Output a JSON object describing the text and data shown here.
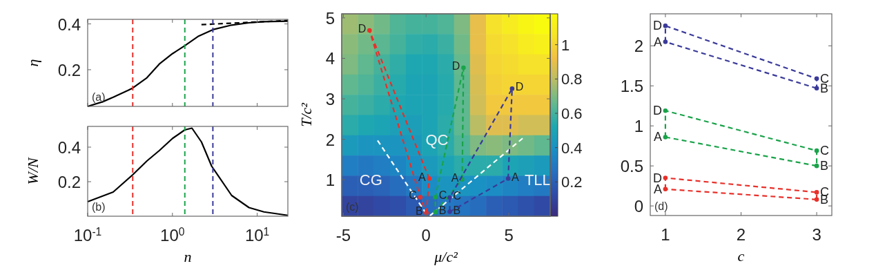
{
  "chart_data": [
    {
      "type": "line",
      "ylabel": "η",
      "annotations": [
        "(a)"
      ],
      "log": "x",
      "xlim": [
        0.1,
        23
      ],
      "xticks": [
        {
          "value": 0.1,
          "label": null
        },
        {
          "value": 1,
          "label": null
        },
        {
          "value": 10,
          "label": null
        }
      ],
      "ylim": [
        0.04,
        0.42
      ],
      "yticks": [
        0.2,
        0.4
      ],
      "tick_labels": "y",
      "line_style": "solid",
      "series": [
        {
          "color": "#000000",
          "x": [
            0.1,
            0.15,
            0.2,
            0.3,
            0.34,
            0.5,
            0.7,
            1.0,
            1.4,
            2,
            3,
            5,
            8,
            12,
            23
          ],
          "values": [
            0.04,
            0.06,
            0.08,
            0.11,
            0.12,
            0.165,
            0.225,
            0.27,
            0.305,
            0.345,
            0.375,
            0.395,
            0.405,
            0.41,
            0.412
          ]
        },
        {
          "color": "#000000",
          "line_style": "dashed",
          "x": [
            2.2,
            23
          ],
          "values": [
            0.397,
            0.415
          ]
        }
      ],
      "ref_lines": [
        {
          "axis": "x",
          "value": 0.34,
          "label": null,
          "color": "#e8302a",
          "line_style": "dashed"
        },
        {
          "axis": "x",
          "value": 1.4,
          "label": null,
          "color": "#1aa34a",
          "line_style": "dashed"
        },
        {
          "axis": "x",
          "value": 3,
          "label": null,
          "color": "#3a3a9a",
          "line_style": "dashed"
        }
      ]
    },
    {
      "type": "line",
      "ylabel": "W/N",
      "xlabel": "n",
      "annotations": [
        "(b)"
      ],
      "log": "x",
      "xlim": [
        0.1,
        23
      ],
      "xticks": [
        {
          "value": 0.1,
          "label": "10$^{-1}$"
        },
        {
          "value": 1,
          "label": "10$^{0}$"
        },
        {
          "value": 10,
          "label": "10$^{1}$"
        }
      ],
      "ylim": [
        0,
        0.52
      ],
      "yticks": [
        0.2,
        0.4
      ],
      "line_style": "solid",
      "series": [
        {
          "color": "#000000",
          "x": [
            0.1,
            0.2,
            0.34,
            0.5,
            0.7,
            1.0,
            1.4,
            1.7,
            2.2,
            2.9,
            5,
            8,
            12,
            23
          ],
          "values": [
            0.084,
            0.14,
            0.24,
            0.32,
            0.38,
            0.45,
            0.5,
            0.51,
            0.43,
            0.29,
            0.12,
            0.05,
            0.025,
            0.005
          ]
        }
      ],
      "ref_lines": [
        {
          "axis": "x",
          "value": 0.34,
          "label": null,
          "color": "#e8302a",
          "line_style": "dashed"
        },
        {
          "axis": "x",
          "value": 1.4,
          "label": null,
          "color": "#1aa34a",
          "line_style": "dashed"
        },
        {
          "axis": "x",
          "value": 3,
          "label": null,
          "color": "#3a3a9a",
          "line_style": "dashed"
        }
      ]
    },
    {
      "type": "heatmap",
      "tick_labels": false,
      "clim": [
        0,
        1.18
      ],
      "cticks": [
        0.2,
        0.4,
        0.6,
        0.8,
        1
      ],
      "categories": [
        null,
        null,
        null,
        null,
        null,
        null,
        null,
        null,
        null,
        null,
        null,
        null,
        null
      ],
      "y_categories": [
        null,
        null,
        null,
        null,
        null,
        null,
        null,
        null,
        null,
        null
      ],
      "cells": [
        [
          0.75,
          0.72,
          0.68,
          0.62,
          0.6,
          0.6,
          0.62,
          0.7,
          0.9,
          1.05,
          1.1,
          1.15,
          1.18
        ],
        [
          0.72,
          0.68,
          0.64,
          0.6,
          0.56,
          0.55,
          0.58,
          0.68,
          0.9,
          1.02,
          1.05,
          1.1,
          1.12
        ],
        [
          0.7,
          0.65,
          0.6,
          0.56,
          0.52,
          0.52,
          0.55,
          0.66,
          0.88,
          1.0,
          1.02,
          1.05,
          1.05
        ],
        [
          0.65,
          0.62,
          0.58,
          0.54,
          0.5,
          0.5,
          0.54,
          0.65,
          0.86,
          0.98,
          1.0,
          1.0,
          1.0
        ],
        [
          0.6,
          0.58,
          0.55,
          0.52,
          0.5,
          0.5,
          0.54,
          0.65,
          0.85,
          0.95,
          0.95,
          0.95,
          0.95
        ],
        [
          0.55,
          0.52,
          0.5,
          0.48,
          0.47,
          0.5,
          0.55,
          0.65,
          0.8,
          0.88,
          0.88,
          0.85,
          0.85
        ],
        [
          0.45,
          0.42,
          0.42,
          0.42,
          0.44,
          0.5,
          0.55,
          0.62,
          0.7,
          0.72,
          0.7,
          0.68,
          0.65
        ],
        [
          0.32,
          0.3,
          0.32,
          0.35,
          0.4,
          0.45,
          0.5,
          0.55,
          0.55,
          0.55,
          0.5,
          0.48,
          0.45
        ],
        [
          0.2,
          0.2,
          0.22,
          0.25,
          0.3,
          0.38,
          0.42,
          0.42,
          0.4,
          0.38,
          0.35,
          0.32,
          0.3
        ],
        [
          0.1,
          0.1,
          0.12,
          0.14,
          0.18,
          0.25,
          0.3,
          0.28,
          0.25,
          0.2,
          0.18,
          0.15,
          0.12
        ]
      ]
    },
    {
      "type": "line",
      "xlabel": "μ/c²",
      "ylabel": "T/c²",
      "xlim": [
        -5.1,
        7.5
      ],
      "xticks": [
        -5,
        0,
        5
      ],
      "ylim": [
        0.1,
        5.1
      ],
      "yticks": [
        1,
        2,
        3,
        4,
        5
      ],
      "line_style": "dashed",
      "series": [
        {
          "color": "#ffffff",
          "x": [
            -2.93,
            0.1
          ],
          "values": [
            1.97,
            0.11
          ]
        },
        {
          "color": "#ffffff",
          "x": [
            0.23,
            5.91
          ],
          "values": [
            0.11,
            2.05
          ]
        },
        {
          "color": "#e8302a",
          "marker": "circle",
          "x": [
            0.19,
            -3.42,
            -0.35,
            0.02
          ],
          "values": [
            1.03,
            4.69,
            0.57,
            0.18
          ],
          "value_labels": [
            "A",
            "D",
            "C",
            "B"
          ]
        },
        {
          "color": "#e8302a",
          "x": [
            0.02,
            0.19
          ],
          "values": [
            0.18,
            1.03
          ]
        },
        {
          "color": "#1aa34a",
          "marker": "circle",
          "x": [
            2.18,
            2.26,
            0.56,
            0.56
          ],
          "values": [
            1.01,
            3.77,
            0.57,
            0.2
          ],
          "value_labels": [
            "A",
            "D",
            "C",
            "B"
          ]
        },
        {
          "color": "#1aa34a",
          "x": [
            0.56,
            2.18
          ],
          "values": [
            0.2,
            1.01
          ]
        },
        {
          "color": "#3a3a9a",
          "marker": "circle",
          "x": [
            4.96,
            5.2,
            1.43,
            1.43
          ],
          "values": [
            1.03,
            3.25,
            0.56,
            0.21
          ],
          "value_labels": [
            "A",
            "D",
            "C",
            "B"
          ]
        },
        {
          "color": "#3a3a9a",
          "x": [
            1.43,
            4.96
          ],
          "values": [
            0.21,
            1.03
          ]
        }
      ],
      "annotations": [
        "(c)",
        "CG",
        "QC",
        "TLL"
      ]
    },
    {
      "type": "line",
      "xlabel": "c",
      "xlim": [
        0.8,
        3.2
      ],
      "xticks": [
        1,
        2,
        3
      ],
      "ylim": [
        -0.12,
        2.4
      ],
      "yticks": [
        0,
        0.5,
        1,
        1.5,
        2
      ],
      "line_style": "dashed",
      "marker": "circle",
      "series": [
        {
          "color": "#3a3a9a",
          "x": [
            1,
            1,
            3,
            3
          ],
          "values": [
            2.05,
            2.25,
            1.59,
            1.47
          ],
          "value_labels": [
            "A",
            "D",
            "C",
            "B"
          ]
        },
        {
          "color": "#3a3a9a",
          "marker": "none",
          "x": [
            3,
            1
          ],
          "values": [
            1.47,
            2.05
          ]
        },
        {
          "color": "#1aa34a",
          "x": [
            1,
            1,
            3,
            3
          ],
          "values": [
            0.86,
            1.19,
            0.69,
            0.5
          ],
          "value_labels": [
            "A",
            "D",
            "C",
            "B"
          ]
        },
        {
          "color": "#1aa34a",
          "marker": "none",
          "x": [
            3,
            1
          ],
          "values": [
            0.5,
            0.86
          ]
        },
        {
          "color": "#e8302a",
          "x": [
            1,
            1,
            3,
            3
          ],
          "values": [
            0.21,
            0.35,
            0.17,
            0.08
          ],
          "value_labels": [
            "A",
            "D",
            "C",
            "B"
          ]
        },
        {
          "color": "#e8302a",
          "marker": "none",
          "x": [
            3,
            1
          ],
          "values": [
            0.08,
            0.21
          ]
        }
      ],
      "annotations": [
        "(d)"
      ]
    }
  ]
}
